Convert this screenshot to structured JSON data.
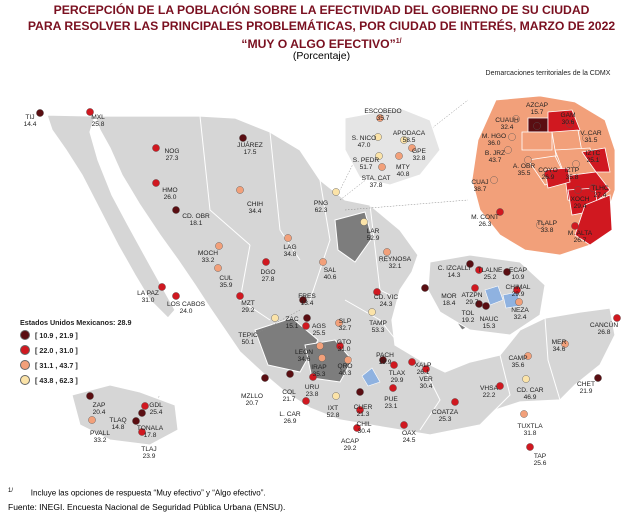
{
  "title": {
    "line1": "PERCEPCIÓN DE LA POBLACIÓN SOBRE LA EFECTIVIDAD DEL GOBIERNO DE SU CIUDAD",
    "line2": "PARA RESOLVER LAS PRINCIPALES PROBLEMÁTICAS, POR CIUDAD DE INTERÉS, MARZO DE 2022",
    "line3": "“MUY O ALGO EFECTIVO”",
    "line3_sup": "1/"
  },
  "subtitle": "(Porcentaje)",
  "legend": {
    "heading": "Estados Unidos Mexicanos: 28.9",
    "classes": [
      {
        "label": "[ 10.9 , 21.9 ]",
        "color": "#5a0e12"
      },
      {
        "label": "[ 22.0 , 31.0 ]",
        "color": "#d01820"
      },
      {
        "label": "[ 31.1 , 43.7 ]",
        "color": "#f2a07a"
      },
      {
        "label": "[ 43.8 , 62.3 ]",
        "color": "#fbe3a8"
      }
    ]
  },
  "cdmx_title": "Demarcaciones territoriales de la CDMX",
  "cities": [
    {
      "name": "TIJ",
      "value": "14.4",
      "cls": 0
    },
    {
      "name": "MXL",
      "value": "25.8",
      "cls": 1
    },
    {
      "name": "NOG",
      "value": "27.3",
      "cls": 1
    },
    {
      "name": "JUÁREZ",
      "value": "17.5",
      "cls": 0
    },
    {
      "name": "HMO",
      "value": "26.0",
      "cls": 1
    },
    {
      "name": "CD. OBR",
      "value": "18.1",
      "cls": 0
    },
    {
      "name": "CHIH",
      "value": "34.4",
      "cls": 2
    },
    {
      "name": "LA PAZ",
      "value": "31.0",
      "cls": 1
    },
    {
      "name": "LOS CABOS",
      "value": "24.0",
      "cls": 1
    },
    {
      "name": "CUL",
      "value": "35.9",
      "cls": 2
    },
    {
      "name": "MOCH",
      "value": "33.2",
      "cls": 2
    },
    {
      "name": "MZT",
      "value": "29.2",
      "cls": 1
    },
    {
      "name": "DGO",
      "value": "27.8",
      "cls": 1
    },
    {
      "name": "LAG",
      "value": "34.8",
      "cls": 2
    },
    {
      "name": "PNG",
      "value": "62.3",
      "cls": 3
    },
    {
      "name": "ESCOBEDO",
      "value": "35.7",
      "cls": 2
    },
    {
      "name": "S. NICO",
      "value": "47.0",
      "cls": 3
    },
    {
      "name": "APODACA",
      "value": "58.5",
      "cls": 3
    },
    {
      "name": "GPE",
      "value": "32.8",
      "cls": 2
    },
    {
      "name": "S. PEDR",
      "value": "51.7",
      "cls": 3
    },
    {
      "name": "MTY",
      "value": "40.8",
      "cls": 2
    },
    {
      "name": "STA. CAT",
      "value": "37.8",
      "cls": 2
    },
    {
      "name": "LAR",
      "value": "52.9",
      "cls": 3
    },
    {
      "name": "REYNOSA",
      "value": "32.1",
      "cls": 2
    },
    {
      "name": "SAL",
      "value": "40.6",
      "cls": 2
    },
    {
      "name": "FRES",
      "value": "13.4",
      "cls": 0
    },
    {
      "name": "ZAC",
      "value": "15.1",
      "cls": 0
    },
    {
      "name": "AGS",
      "value": "25.5",
      "cls": 1
    },
    {
      "name": "SLP",
      "value": "32.7",
      "cls": 2
    },
    {
      "name": "CD. VIC",
      "value": "24.3",
      "cls": 1
    },
    {
      "name": "TEPIC",
      "value": "50.1",
      "cls": 3
    },
    {
      "name": "LEÓN",
      "value": "34.6",
      "cls": 2
    },
    {
      "name": "GTO",
      "value": "31.0",
      "cls": 1
    },
    {
      "name": "TAMP",
      "value": "53.3",
      "cls": 3
    },
    {
      "name": "IRAP",
      "value": "35.3",
      "cls": 2
    },
    {
      "name": "QRO",
      "value": "40.3",
      "cls": 2
    },
    {
      "name": "PACH",
      "value": "19.9",
      "cls": 0
    },
    {
      "name": "MZLLO",
      "value": "20.7",
      "cls": 0
    },
    {
      "name": "COL",
      "value": "21.7",
      "cls": 0
    },
    {
      "name": "URU",
      "value": "23.8",
      "cls": 1
    },
    {
      "name": "TLAX",
      "value": "29.9",
      "cls": 1
    },
    {
      "name": "XALP",
      "value": "26.1",
      "cls": 1
    },
    {
      "name": "VER",
      "value": "30.4",
      "cls": 1
    },
    {
      "name": "CUER",
      "value": "21.3",
      "cls": 0
    },
    {
      "name": "PUE",
      "value": "23.1",
      "cls": 1
    },
    {
      "name": "L. CAR",
      "value": "26.9",
      "cls": 1
    },
    {
      "name": "IXT",
      "value": "52.8",
      "cls": 3
    },
    {
      "name": "CHIL",
      "value": "30.4",
      "cls": 1
    },
    {
      "name": "ACAP",
      "value": "29.2",
      "cls": 1
    },
    {
      "name": "OAX",
      "value": "24.5",
      "cls": 1
    },
    {
      "name": "COATZA",
      "value": "25.3",
      "cls": 1
    },
    {
      "name": "VHSA",
      "value": "22.2",
      "cls": 1
    },
    {
      "name": "CD. CAR",
      "value": "46.9",
      "cls": 3
    },
    {
      "name": "CAMP",
      "value": "35.6",
      "cls": 2
    },
    {
      "name": "MER",
      "value": "34.6",
      "cls": 2
    },
    {
      "name": "CANCÚN",
      "value": "26.8",
      "cls": 1
    },
    {
      "name": "CHET",
      "value": "21.9",
      "cls": 0
    },
    {
      "name": "TUXTLA",
      "value": "31.8",
      "cls": 2
    },
    {
      "name": "TAP",
      "value": "25.6",
      "cls": 1
    },
    {
      "name": "ZAP",
      "value": "20.4",
      "cls": 0
    },
    {
      "name": "GDL",
      "value": "25.4",
      "cls": 1
    },
    {
      "name": "TLAQ",
      "value": "14.8",
      "cls": 0
    },
    {
      "name": "TONALA",
      "value": "17.8",
      "cls": 0
    },
    {
      "name": "PVALL",
      "value": "33.2",
      "cls": 2
    },
    {
      "name": "TLAJ",
      "value": "23.9",
      "cls": 1
    },
    {
      "name": "C. IZCALLI",
      "value": "14.3",
      "cls": 0
    },
    {
      "name": "TLALNE",
      "value": "25.2",
      "cls": 1
    },
    {
      "name": "ECAP",
      "value": "10.9",
      "cls": 0
    },
    {
      "name": "ATZPN",
      "value": "29.7",
      "cls": 1
    },
    {
      "name": "CHIMAL",
      "value": "29.9",
      "cls": 1
    },
    {
      "name": "TOL",
      "value": "19.2",
      "cls": 0
    },
    {
      "name": "NAUC",
      "value": "15.3",
      "cls": 0
    },
    {
      "name": "NEZA",
      "value": "32.4",
      "cls": 2
    },
    {
      "name": "MOR",
      "value": "18.4",
      "cls": 0
    }
  ],
  "cdmx": [
    {
      "name": "AZCAP",
      "value": "15.7",
      "cls": 0
    },
    {
      "name": "GAM",
      "value": "30.6",
      "cls": 1
    },
    {
      "name": "CUAUH",
      "value": "32.4",
      "cls": 2
    },
    {
      "name": "V. CAR",
      "value": "31.5",
      "cls": 2
    },
    {
      "name": "M. HGO",
      "value": "36.0",
      "cls": 2
    },
    {
      "name": "B. JRZ",
      "value": "43.7",
      "cls": 2
    },
    {
      "name": "IZTC",
      "value": "25.1",
      "cls": 1
    },
    {
      "name": "A. OBR",
      "value": "35.5",
      "cls": 2
    },
    {
      "name": "COYO",
      "value": "26.9",
      "cls": 1
    },
    {
      "name": "IZTP",
      "value": "35.8",
      "cls": 2
    },
    {
      "name": "CUAJ",
      "value": "38.7",
      "cls": 2
    },
    {
      "name": "TLHC",
      "value": "27.4",
      "cls": 1
    },
    {
      "name": "XOCH",
      "value": "29.4",
      "cls": 1
    },
    {
      "name": "M. CONT",
      "value": "26.3",
      "cls": 1
    },
    {
      "name": "TLALP",
      "value": "33.8",
      "cls": 2
    },
    {
      "name": "M. ALTA",
      "value": "26.7",
      "cls": 1
    }
  ],
  "footnote": {
    "mark": "1/",
    "text": "Incluye las opciones de respuesta “Muy efectivo” y “Algo efectivo”."
  },
  "source": "Fuente: INEGI. Encuesta Nacional de Seguridad Pública Urbana (ENSU)."
}
